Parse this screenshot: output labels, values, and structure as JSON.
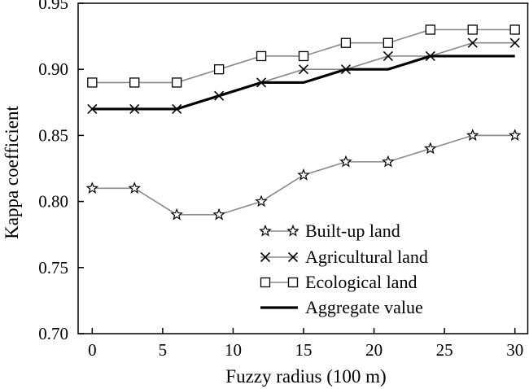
{
  "chart_data": {
    "type": "line",
    "title": "",
    "xlabel": "Fuzzy radius (100 m)",
    "ylabel": "Kappa coefficient",
    "xlim": [
      -1,
      31
    ],
    "ylim": [
      0.7,
      0.95
    ],
    "xticks": [
      0,
      5,
      10,
      15,
      20,
      25,
      30
    ],
    "yticks": [
      0.7,
      0.75,
      0.8,
      0.85,
      0.9,
      0.95
    ],
    "x": [
      0,
      3,
      6,
      9,
      12,
      15,
      18,
      21,
      24,
      27,
      30
    ],
    "grid": false,
    "legend_position": "bottom-right",
    "series": [
      {
        "name": "Built-up land",
        "marker": "star",
        "color": "#8a8a8a",
        "width": 1.6,
        "values": [
          0.81,
          0.81,
          0.79,
          0.79,
          0.8,
          0.82,
          0.83,
          0.83,
          0.84,
          0.85,
          0.85
        ]
      },
      {
        "name": "Agricultural land",
        "marker": "x",
        "color": "#8a8a8a",
        "width": 1.6,
        "values": [
          0.87,
          0.87,
          0.87,
          0.88,
          0.89,
          0.9,
          0.9,
          0.91,
          0.91,
          0.92,
          0.92
        ]
      },
      {
        "name": "Ecological land",
        "marker": "square",
        "color": "#8a8a8a",
        "width": 1.6,
        "values": [
          0.89,
          0.89,
          0.89,
          0.9,
          0.91,
          0.91,
          0.92,
          0.92,
          0.93,
          0.93,
          0.93
        ]
      },
      {
        "name": "Aggregate value",
        "marker": "none",
        "color": "#000000",
        "width": 3.2,
        "values": [
          0.87,
          0.87,
          0.87,
          0.88,
          0.89,
          0.89,
          0.9,
          0.9,
          0.91,
          0.91,
          0.91
        ]
      }
    ]
  }
}
